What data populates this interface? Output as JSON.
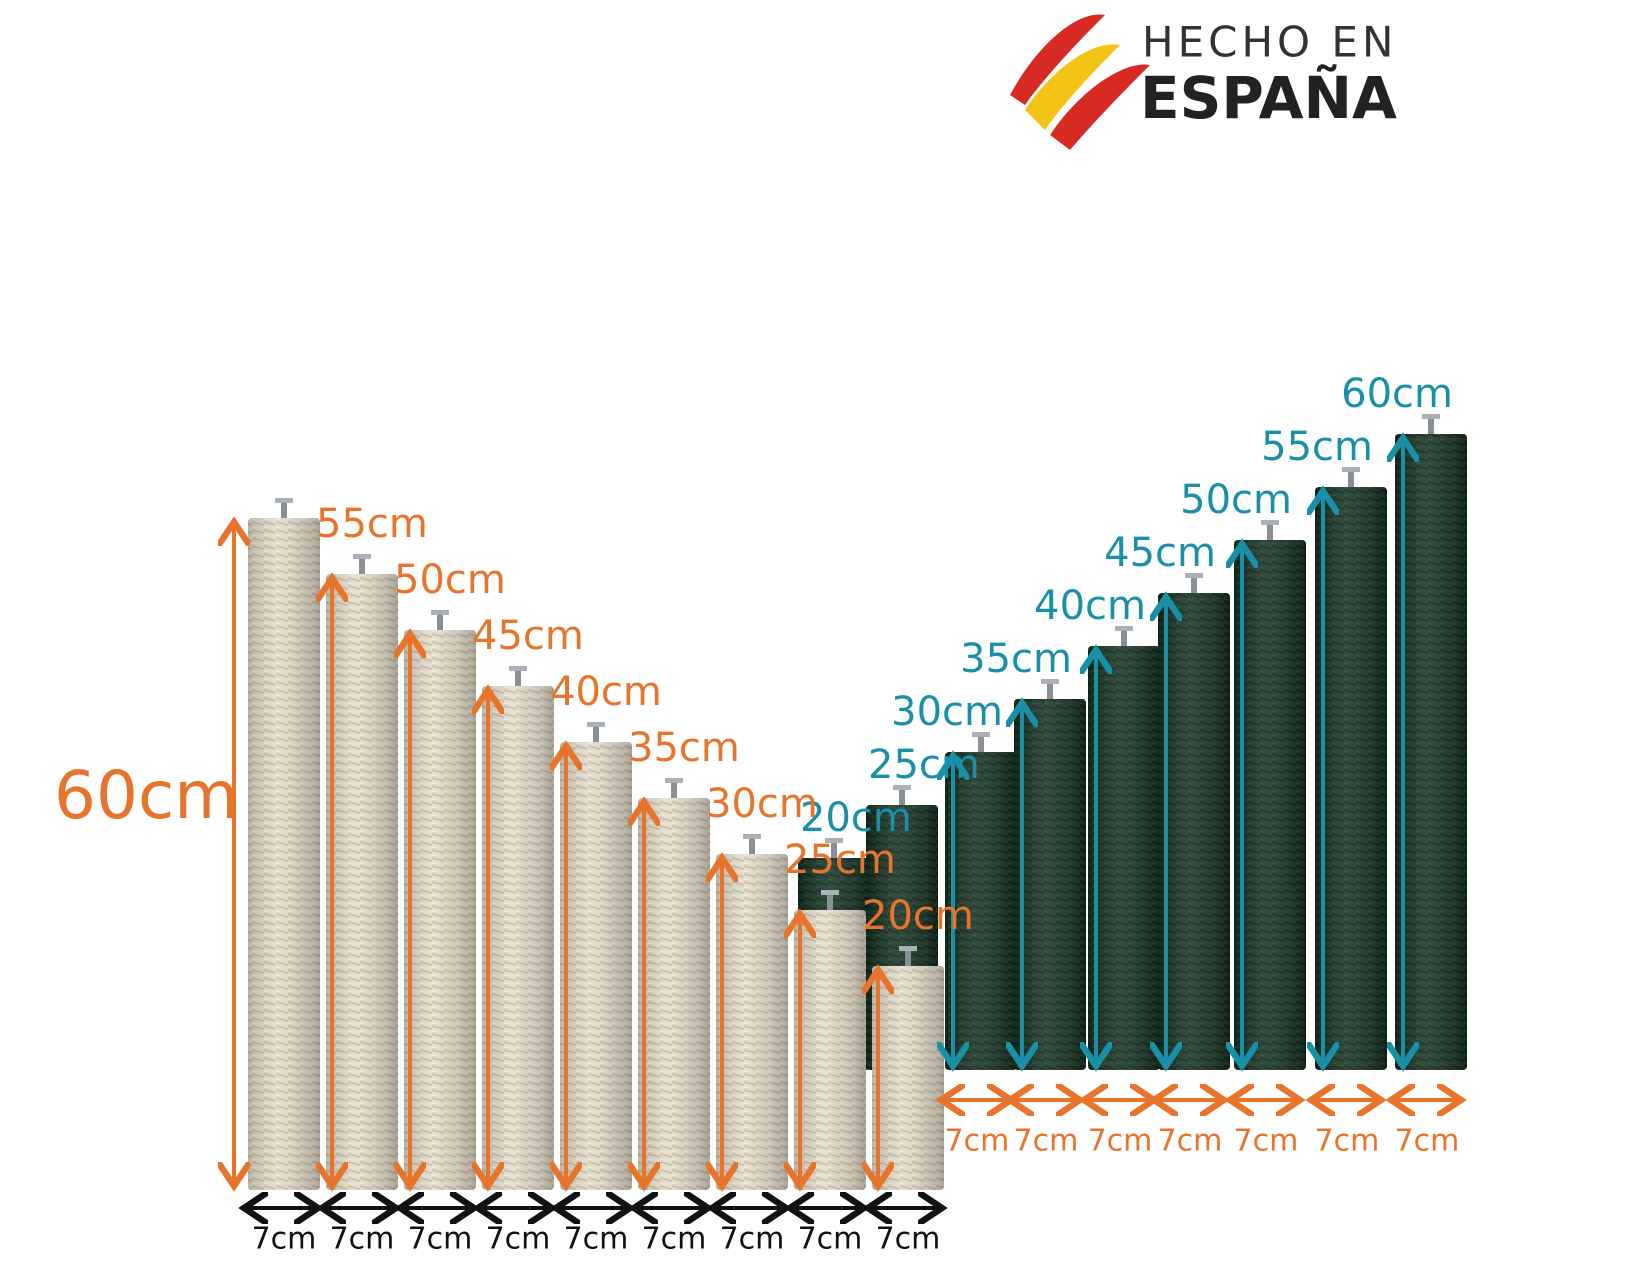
{
  "logo": {
    "line1": "HECHO EN",
    "line2": "ESPAÑA"
  },
  "natural_posts": [
    {
      "label": "60cm",
      "height": 60,
      "width_label": "7cm"
    },
    {
      "label": "55cm",
      "height": 55,
      "width_label": "7cm"
    },
    {
      "label": "50cm",
      "height": 50,
      "width_label": "7cm"
    },
    {
      "label": "45cm",
      "height": 45,
      "width_label": "7cm"
    },
    {
      "label": "40cm",
      "height": 40,
      "width_label": "7cm"
    },
    {
      "label": "35cm",
      "height": 35,
      "width_label": "7cm"
    },
    {
      "label": "30cm",
      "height": 30,
      "width_label": "7cm"
    },
    {
      "label": "25cm",
      "height": 25,
      "width_label": "7cm"
    },
    {
      "label": "20cm",
      "height": 20,
      "width_label": "7cm"
    }
  ],
  "green_posts": [
    {
      "label": "20cm",
      "height": 20
    },
    {
      "label": "25cm",
      "height": 25
    },
    {
      "label": "30cm",
      "height": 30,
      "width_label": "7cm"
    },
    {
      "label": "35cm",
      "height": 35,
      "width_label": "7cm"
    },
    {
      "label": "40cm",
      "height": 40,
      "width_label": "7cm"
    },
    {
      "label": "45cm",
      "height": 45,
      "width_label": "7cm"
    },
    {
      "label": "50cm",
      "height": 50,
      "width_label": "7cm"
    },
    {
      "label": "55cm",
      "height": 55,
      "width_label": "7cm"
    },
    {
      "label": "60cm",
      "height": 60,
      "width_label": "7cm"
    }
  ]
}
